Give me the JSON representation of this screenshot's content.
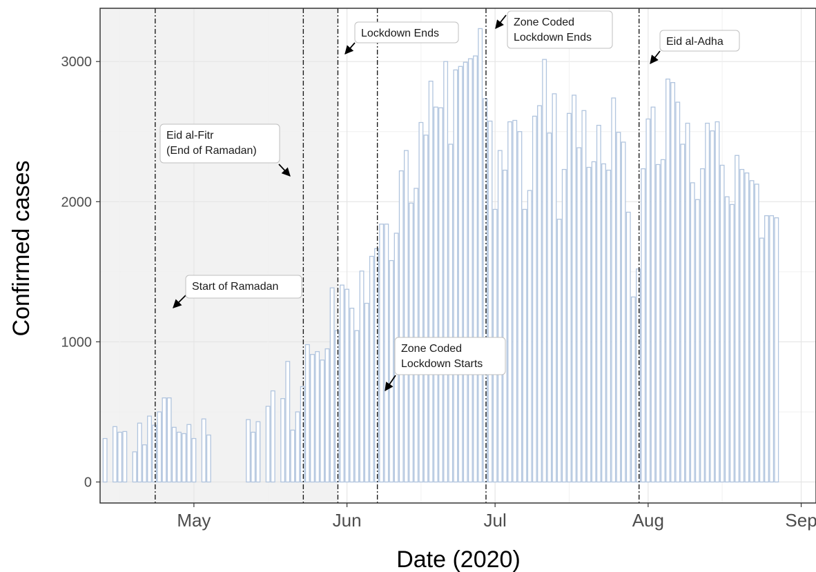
{
  "chart_data": {
    "type": "bar",
    "xlabel": "Date (2020)",
    "ylabel": "Confirmed cases",
    "ylim": [
      -150,
      3380
    ],
    "xlim": [
      "2020-04-12",
      "2020-09-04"
    ],
    "y_ticks": [
      0,
      1000,
      2000,
      3000
    ],
    "x_ticks": [
      {
        "date": "2020-05-01",
        "label": "May"
      },
      {
        "date": "2020-06-01",
        "label": "Jun"
      },
      {
        "date": "2020-07-01",
        "label": "Jul"
      },
      {
        "date": "2020-08-01",
        "label": "Aug"
      },
      {
        "date": "2020-09-01",
        "label": "Sep"
      }
    ],
    "grid": true,
    "bar_color": "#b0c4de",
    "shaded_period": {
      "start": "2020-04-13",
      "end": "2020-05-31",
      "color": "#f2f2f2"
    },
    "events": [
      {
        "date": "2020-04-24",
        "label": "Start of Ramadan"
      },
      {
        "date": "2020-05-24",
        "label": "Eid al-Fitr\n(End of Ramadan)"
      },
      {
        "date": "2020-05-31",
        "label": "Lockdown Ends"
      },
      {
        "date": "2020-06-08",
        "label": "Zone Coded\nLockdown Starts"
      },
      {
        "date": "2020-06-30",
        "label": "Zone Coded\nLockdown Ends"
      },
      {
        "date": "2020-07-31",
        "label": "Eid al-Adha"
      }
    ],
    "series": [
      {
        "start_date": "2020-04-13",
        "values": [
          310,
          null,
          395,
          355,
          360,
          null,
          215,
          420,
          265,
          470,
          405,
          500,
          600,
          600,
          390,
          355,
          345,
          410,
          310,
          null,
          450,
          335,
          null,
          null,
          null,
          null,
          null,
          null,
          null,
          445,
          355,
          430,
          null,
          540,
          650,
          null,
          595,
          860,
          370,
          500,
          680,
          980,
          910,
          930,
          870,
          950,
          1385,
          1080,
          1405,
          1375,
          1240,
          1080,
          1505,
          1275,
          1610,
          1665,
          1840,
          1840,
          1580,
          1775,
          2220,
          2365,
          1990,
          2095,
          2565,
          2475,
          2860,
          2675,
          2670,
          3000,
          2410,
          2940,
          2965,
          2995,
          3020,
          3040,
          3235,
          2735,
          2575,
          1945,
          2365,
          2225,
          2570,
          2580,
          2500,
          1945,
          2080,
          2610,
          2685,
          3015,
          2490,
          2770,
          1875,
          2230,
          2630,
          2760,
          2385,
          2650,
          2245,
          2285,
          2545,
          2270,
          2225,
          2740,
          2495,
          2425,
          1925,
          1320,
          1520,
          2235,
          2590,
          2675,
          2265,
          2300,
          2875,
          2850,
          2710,
          2410,
          2560,
          2135,
          2015,
          2235,
          2560,
          2505,
          2570,
          2260,
          2035,
          1980,
          2330,
          2230,
          2205,
          2150,
          2125,
          1740,
          1900,
          1900,
          1885
        ]
      }
    ]
  }
}
